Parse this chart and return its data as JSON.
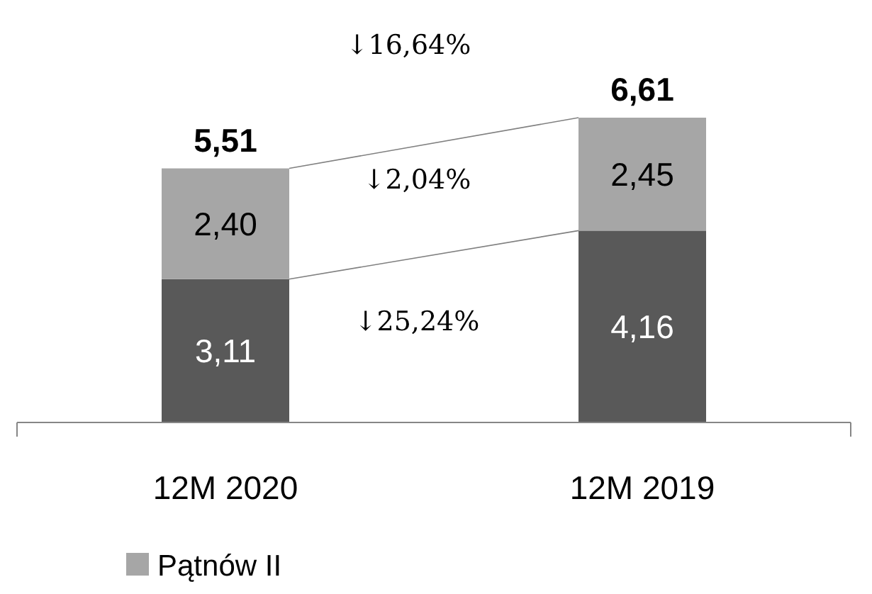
{
  "chart_data": {
    "type": "bar",
    "stacked": true,
    "categories": [
      "12M 2020",
      "12M 2019"
    ],
    "series": [
      {
        "color": "#595959",
        "values": [
          3.11,
          4.16
        ],
        "value_labels": [
          "3,11",
          "4,16"
        ]
      },
      {
        "name": "Pątnów II",
        "color": "#a6a6a6",
        "values": [
          2.4,
          2.45
        ],
        "value_labels": [
          "2,40",
          "2,45"
        ]
      }
    ],
    "totals": [
      "5,51",
      "6,61"
    ],
    "annotations": [
      "↓16,64%",
      "↓2,04%",
      "↓25,24%"
    ],
    "legend": "bottom"
  }
}
